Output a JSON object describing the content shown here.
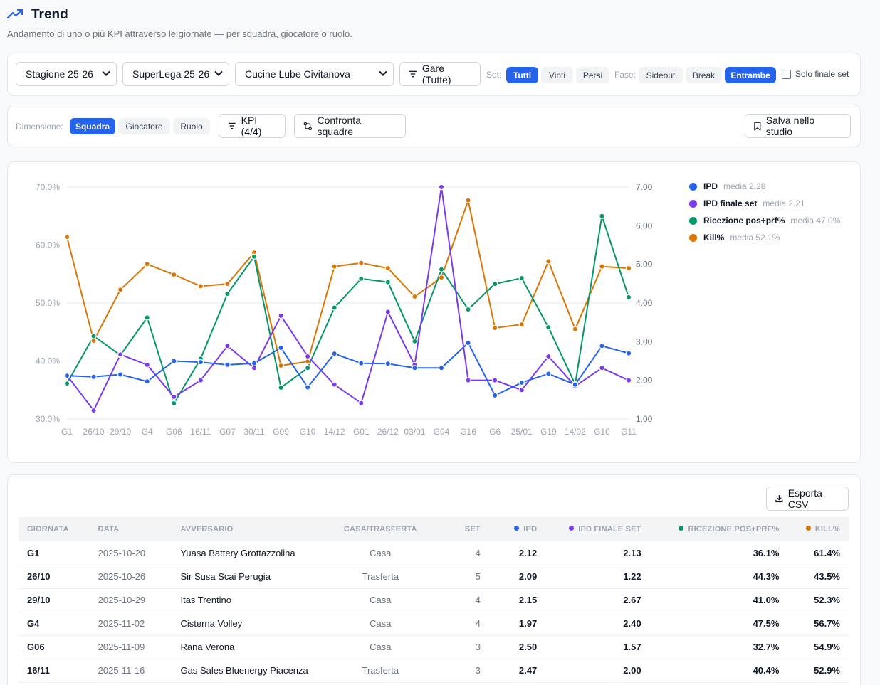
{
  "page": {
    "title": "Trend",
    "subtitle": "Andamento di uno o più KPI attraverso le giornate — per squadra, giocatore o ruolo."
  },
  "filters": {
    "season": "Stagione 25-26",
    "league": "SuperLega 25-26",
    "team": "Cucine Lube Civitanova",
    "matches_button": "Gare (Tutte)",
    "set_label": "Set:",
    "set_options": [
      "Tutti",
      "Vinti",
      "Persi"
    ],
    "set_active": "Tutti",
    "phase_label": "Fase:",
    "phase_options": [
      "Sideout",
      "Break",
      "Entrambe"
    ],
    "phase_active": "Entrambe",
    "final_set_only": "Solo finale set"
  },
  "dimension": {
    "label": "Dimensione:",
    "options": [
      "Squadra",
      "Giocatore",
      "Ruolo"
    ],
    "active": "Squadra",
    "kpi_button": "KPI (4/4)",
    "compare_button": "Confronta squadre",
    "save_button": "Salva nello studio"
  },
  "colors": {
    "accent": "#2563eb",
    "ipd": "#2563eb",
    "ipd_final": "#7c3aed",
    "reception": "#059669",
    "kill": "#d97706"
  },
  "chart_data": {
    "type": "line",
    "categories": [
      "G1",
      "26/10",
      "29/10",
      "G4",
      "G06",
      "16/11",
      "G07",
      "30/11",
      "G09",
      "G10",
      "14/12",
      "G01",
      "26/12",
      "03/01",
      "G04",
      "G16",
      "G6",
      "25/01",
      "G19",
      "14/02",
      "G10",
      "G11"
    ],
    "y_left": {
      "ticks": [
        "30.0%",
        "40.0%",
        "50.0%",
        "60.0%",
        "70.0%"
      ],
      "range": [
        30,
        70
      ]
    },
    "y_right": {
      "ticks": [
        "1.00",
        "2.00",
        "3.00",
        "4.00",
        "5.00",
        "6.00",
        "7.00"
      ],
      "range": [
        1,
        7
      ]
    },
    "grid": true,
    "legend_position": "right",
    "series": [
      {
        "name": "IPD",
        "mean": "media 2.28",
        "axis": "right",
        "color": "#2563eb",
        "values": [
          2.12,
          2.09,
          2.15,
          1.97,
          2.5,
          2.47,
          2.4,
          2.44,
          2.84,
          1.82,
          2.69,
          2.44,
          2.43,
          2.32,
          2.32,
          2.97,
          1.61,
          1.94,
          2.17,
          1.89,
          2.89,
          2.7
        ]
      },
      {
        "name": "IPD finale set",
        "mean": "media 2.21",
        "axis": "right",
        "color": "#7c3aed",
        "values": [
          2.13,
          1.22,
          2.67,
          2.4,
          1.57,
          2.0,
          2.89,
          2.32,
          3.67,
          2.62,
          1.89,
          1.41,
          3.77,
          2.4,
          7.0,
          2.0,
          2.0,
          1.75,
          2.62,
          1.85,
          2.32,
          2.0
        ]
      },
      {
        "name": "Ricezione pos+prf%",
        "mean": "media 47.0%",
        "axis": "left",
        "color": "#059669",
        "values": [
          36.1,
          44.3,
          41.0,
          47.5,
          32.7,
          40.4,
          51.6,
          58.0,
          35.4,
          38.8,
          49.2,
          54.2,
          53.6,
          43.4,
          55.8,
          48.9,
          53.3,
          54.3,
          45.8,
          36.0,
          65.0,
          51.0
        ]
      },
      {
        "name": "Kill%",
        "mean": "media 52.1%",
        "axis": "left",
        "color": "#d97706",
        "values": [
          61.4,
          43.5,
          52.3,
          56.7,
          54.9,
          52.9,
          53.3,
          58.7,
          39.2,
          39.9,
          56.3,
          56.9,
          56.0,
          51.1,
          54.4,
          67.7,
          45.7,
          46.3,
          57.2,
          45.5,
          56.3,
          56.0
        ]
      }
    ]
  },
  "table": {
    "export_button": "Esporta CSV",
    "headers": [
      "GIORNATA",
      "DATA",
      "AVVERSARIO",
      "CASA/TRASFERTA",
      "SET",
      "IPD",
      "IPD FINALE SET",
      "RICEZIONE POS+PRF%",
      "KILL%"
    ],
    "rows": [
      [
        "G1",
        "2025-10-20",
        "Yuasa Battery Grottazzolina",
        "Casa",
        "4",
        "2.12",
        "2.13",
        "36.1%",
        "61.4%"
      ],
      [
        "26/10",
        "2025-10-26",
        "Sir Susa Scai Perugia",
        "Trasferta",
        "5",
        "2.09",
        "1.22",
        "44.3%",
        "43.5%"
      ],
      [
        "29/10",
        "2025-10-29",
        "Itas Trentino",
        "Casa",
        "4",
        "2.15",
        "2.67",
        "41.0%",
        "52.3%"
      ],
      [
        "G4",
        "2025-11-02",
        "Cisterna Volley",
        "Casa",
        "4",
        "1.97",
        "2.40",
        "47.5%",
        "56.7%"
      ],
      [
        "G06",
        "2025-11-09",
        "Rana Verona",
        "Casa",
        "3",
        "2.50",
        "1.57",
        "32.7%",
        "54.9%"
      ],
      [
        "16/11",
        "2025-11-16",
        "Gas Sales Bluenergy Piacenza",
        "Trasferta",
        "3",
        "2.47",
        "2.00",
        "40.4%",
        "52.9%"
      ]
    ]
  }
}
